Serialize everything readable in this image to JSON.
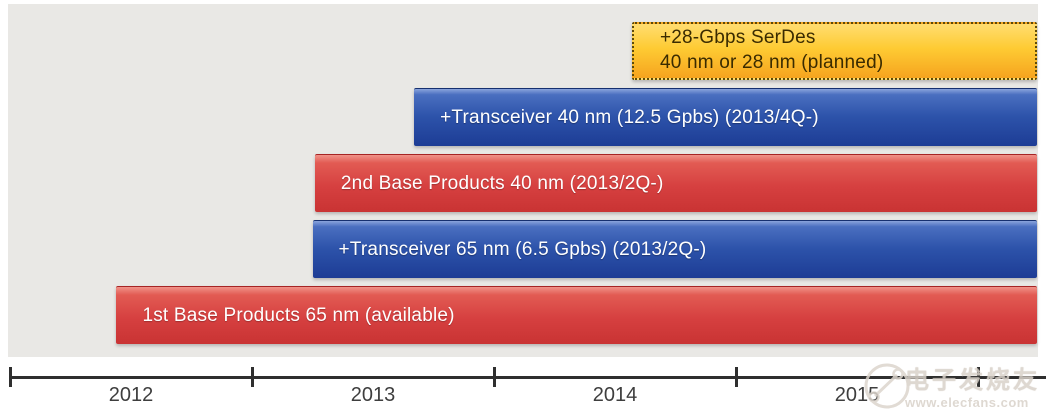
{
  "chart_data": {
    "type": "bar",
    "variant": "roadmap-timeline",
    "orientation": "horizontal",
    "title": "",
    "axis": {
      "unit": "year",
      "range": [
        2012,
        2016.3
      ],
      "ticks": [
        2012,
        2013,
        2014,
        2015,
        2016
      ],
      "tick_labels": [
        "2012",
        "2013",
        "2014",
        "2015"
      ],
      "tick_label_position": "between-ticks",
      "grid": false,
      "legend": "none"
    },
    "bars": [
      {
        "id": "serdes-28gbps",
        "row": 0,
        "label": "+28-Gbps SerDes",
        "label2": "40 nm or 28 nm (planned)",
        "color": "yellow",
        "border": "dotted",
        "start_year": 2014.57,
        "open_ended": true
      },
      {
        "id": "transceiver-40nm",
        "row": 1,
        "label": "+Transceiver 40 nm (12.5 Gpbs) (2013/4Q-)",
        "label2": "",
        "color": "blue",
        "border": "solid",
        "start_year": 2013.67,
        "open_ended": true
      },
      {
        "id": "base-products-2nd-40nm",
        "row": 2,
        "label": "2nd Base Products 40 nm (2013/2Q-)",
        "label2": "",
        "color": "red",
        "border": "solid",
        "start_year": 2013.26,
        "open_ended": true
      },
      {
        "id": "transceiver-65nm",
        "row": 3,
        "label": "+Transceiver 65 nm (6.5 Gpbs) (2013/2Q-)",
        "label2": "",
        "color": "blue",
        "border": "solid",
        "start_year": 2013.25,
        "open_ended": true
      },
      {
        "id": "base-products-1st-65nm",
        "row": 4,
        "label": "1st Base Products 65 nm (available)",
        "label2": "",
        "color": "red",
        "border": "solid",
        "start_year": 2012.44,
        "open_ended": true
      }
    ],
    "colors": {
      "red": "#d64040",
      "blue": "#2d53aa",
      "yellow": "#fbc02d",
      "background": "#e9e8e5",
      "axis": "#2f2f2f"
    }
  },
  "watermark": {
    "brand": "电子发烧友",
    "url": "www.elecfans.com"
  }
}
